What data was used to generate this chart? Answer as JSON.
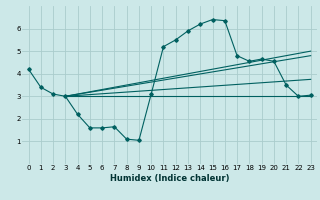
{
  "xlabel": "Humidex (Indice chaleur)",
  "bg_color": "#cce8e8",
  "grid_color": "#aacccc",
  "line_color": "#006060",
  "xlim": [
    -0.5,
    23.5
  ],
  "ylim": [
    0,
    7
  ],
  "xticks": [
    0,
    1,
    2,
    3,
    4,
    5,
    6,
    7,
    8,
    9,
    10,
    11,
    12,
    13,
    14,
    15,
    16,
    17,
    18,
    19,
    20,
    21,
    22,
    23
  ],
  "yticks": [
    1,
    2,
    3,
    4,
    5,
    6
  ],
  "main_x": [
    0,
    1,
    2,
    3,
    4,
    5,
    6,
    7,
    8,
    9,
    10,
    11,
    12,
    13,
    14,
    15,
    16,
    17,
    18,
    19,
    20,
    21,
    22,
    23
  ],
  "main_y": [
    4.2,
    3.4,
    3.1,
    3.0,
    2.2,
    1.6,
    1.6,
    1.65,
    1.1,
    1.05,
    3.1,
    5.2,
    5.5,
    5.9,
    6.2,
    6.4,
    6.35,
    4.8,
    4.55,
    4.65,
    4.55,
    3.5,
    3.0,
    3.05
  ],
  "trend1_x": [
    3,
    23
  ],
  "trend1_y": [
    3.0,
    3.0
  ],
  "trend2_x": [
    3,
    23
  ],
  "trend2_y": [
    3.0,
    3.75
  ],
  "trend3_x": [
    3,
    23
  ],
  "trend3_y": [
    3.0,
    4.8
  ],
  "trend4_x": [
    3,
    23
  ],
  "trend4_y": [
    3.0,
    5.0
  ]
}
